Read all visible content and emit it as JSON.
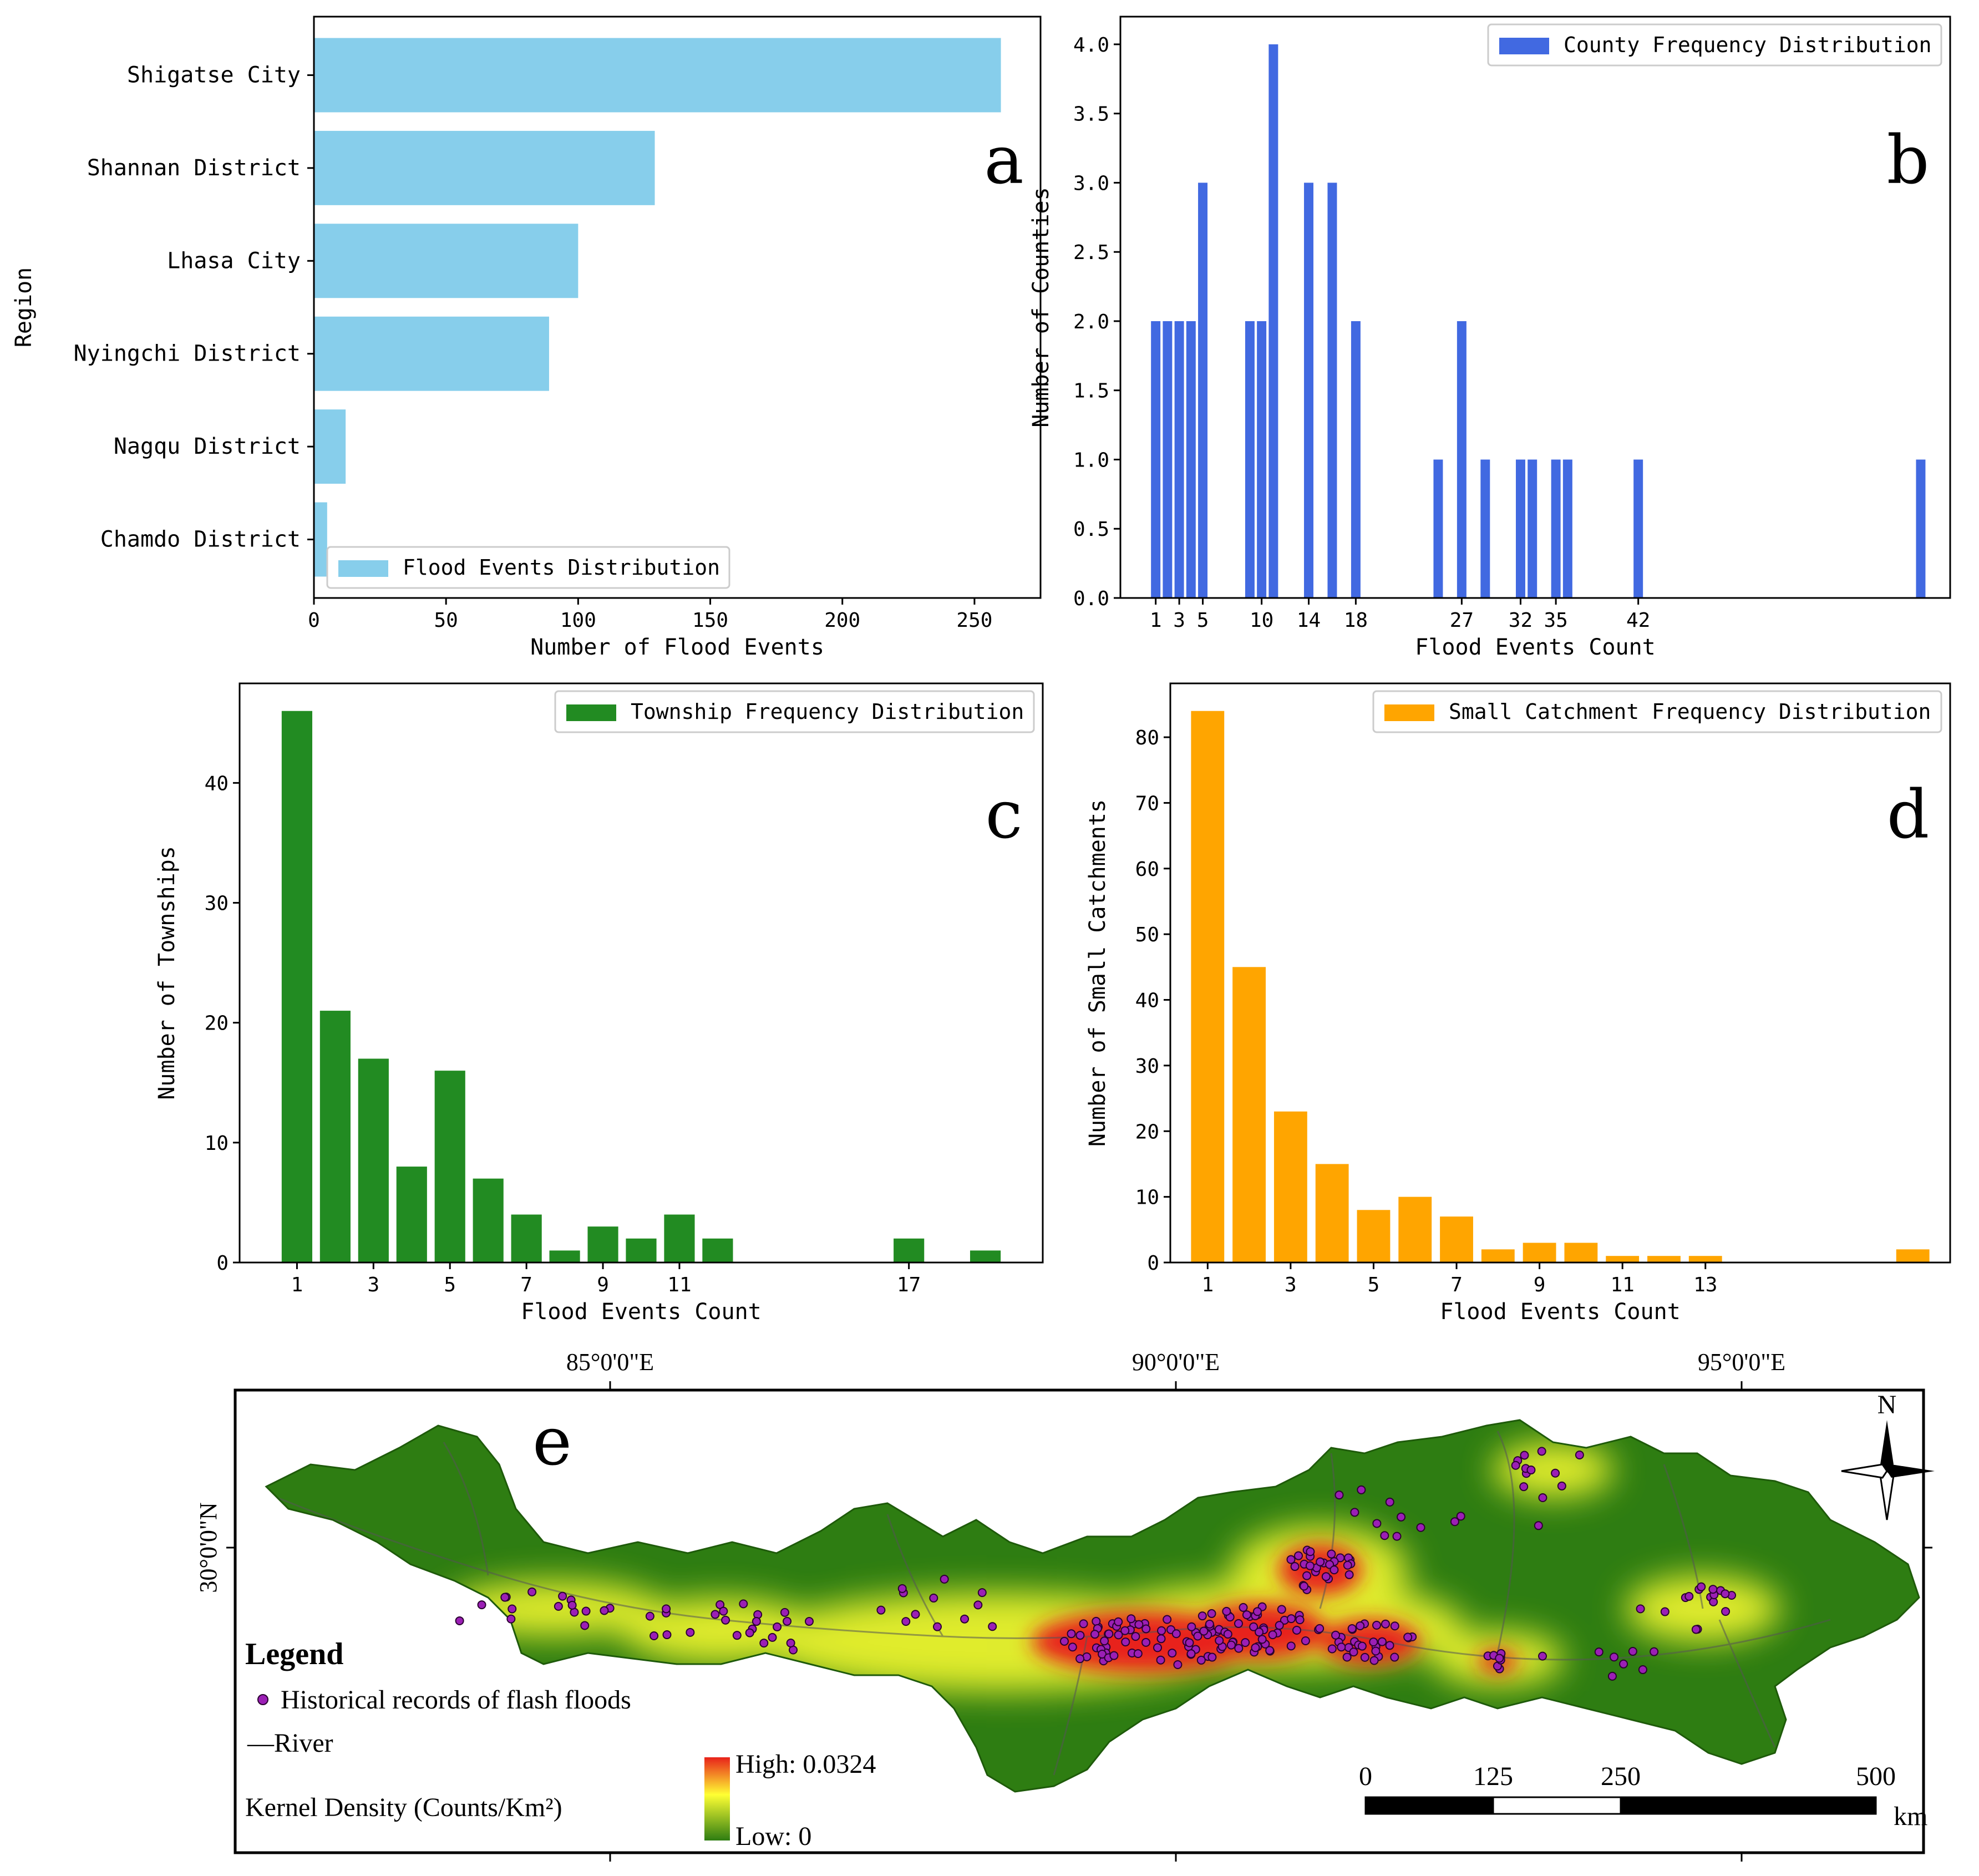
{
  "panels": {
    "a": "a",
    "b": "b",
    "c": "c",
    "d": "d",
    "e": "e"
  },
  "chart_data": [
    {
      "id": "a",
      "type": "bar",
      "orientation": "horizontal",
      "color": "#87CEEB",
      "categories": [
        "Shigatse City",
        "Shannan District",
        "Lhasa City",
        "Nyingchi District",
        "Nagqu District",
        "Chamdo District"
      ],
      "values": [
        260,
        129,
        100,
        89,
        12,
        5
      ],
      "xlabel": "Number of Flood Events",
      "ylabel": "Region",
      "xlim": [
        0,
        275
      ],
      "xticks": [
        0,
        50,
        100,
        150,
        200,
        250
      ],
      "legend": "Flood Events Distribution",
      "legend_position": "lower-left"
    },
    {
      "id": "b",
      "type": "bar",
      "color": "#4169E1",
      "x": [
        1,
        2,
        3,
        4,
        5,
        9,
        10,
        11,
        14,
        16,
        18,
        25,
        27,
        29,
        32,
        33,
        35,
        36,
        42,
        66
      ],
      "values": [
        2,
        2,
        2,
        2,
        3,
        2,
        2,
        4,
        3,
        3,
        2,
        1,
        2,
        1,
        1,
        1,
        1,
        1,
        1,
        1
      ],
      "xlabel": "Flood Events Count",
      "ylabel": "Number of Counties",
      "xlim": [
        -2,
        68.5
      ],
      "ylim": [
        0,
        4.2
      ],
      "xticks": [
        1,
        3,
        5,
        10,
        14,
        18,
        27,
        32,
        35,
        42
      ],
      "yticks": [
        0.0,
        0.5,
        1.0,
        1.5,
        2.0,
        2.5,
        3.0,
        3.5,
        4.0
      ],
      "legend": "County Frequency Distribution",
      "legend_position": "top-right"
    },
    {
      "id": "c",
      "type": "bar",
      "color": "#228B22",
      "x": [
        1,
        2,
        3,
        4,
        5,
        6,
        7,
        8,
        9,
        10,
        11,
        12,
        17,
        19
      ],
      "values": [
        46,
        21,
        17,
        8,
        16,
        7,
        4,
        1,
        3,
        2,
        4,
        2,
        2,
        1
      ],
      "xlabel": "Flood Events Count",
      "ylabel": "Number of Townships",
      "xlim": [
        -0.5,
        20.5
      ],
      "ylim": [
        0,
        48.3
      ],
      "xticks": [
        1,
        3,
        5,
        7,
        9,
        11,
        17
      ],
      "yticks": [
        0,
        10,
        20,
        30,
        40
      ],
      "legend": "Township Frequency Distribution",
      "legend_position": "top-right"
    },
    {
      "id": "d",
      "type": "bar",
      "color": "#FFA500",
      "x": [
        1,
        2,
        3,
        4,
        5,
        6,
        7,
        8,
        9,
        10,
        11,
        12,
        13,
        18
      ],
      "values": [
        84,
        45,
        23,
        15,
        8,
        10,
        7,
        2,
        3,
        3,
        1,
        1,
        1,
        2
      ],
      "xlabel": "Flood Events Count",
      "ylabel": "Number of Small Catchments",
      "xlim": [
        0.1,
        18.9
      ],
      "ylim": [
        0,
        88.2
      ],
      "xticks": [
        1,
        3,
        5,
        7,
        9,
        11,
        13
      ],
      "yticks": [
        0,
        10,
        20,
        30,
        40,
        50,
        60,
        70,
        80
      ],
      "legend": "Small Catchment Frequency Distribution",
      "legend_position": "top-right"
    }
  ],
  "map": {
    "lon_labels": [
      "85°0'0\"E",
      "90°0'0\"E",
      "95°0'0\"E"
    ],
    "lat_label": "30°0'0\"N",
    "north": "N",
    "legend_title": "Legend",
    "legend_points": "Historical records of flash floods",
    "legend_river": "—River",
    "legend_density": "Kernel Density (Counts/Km²)",
    "high_label": "High:  0.0324",
    "low_label": "Low:  0",
    "scale_labels": [
      "0",
      "125",
      "250",
      "500"
    ],
    "scale_unit": "km",
    "colors": {
      "low": "#2e7d12",
      "mid": "#ffff33",
      "high": "#e8221a",
      "point": "#9b1fb5"
    }
  }
}
